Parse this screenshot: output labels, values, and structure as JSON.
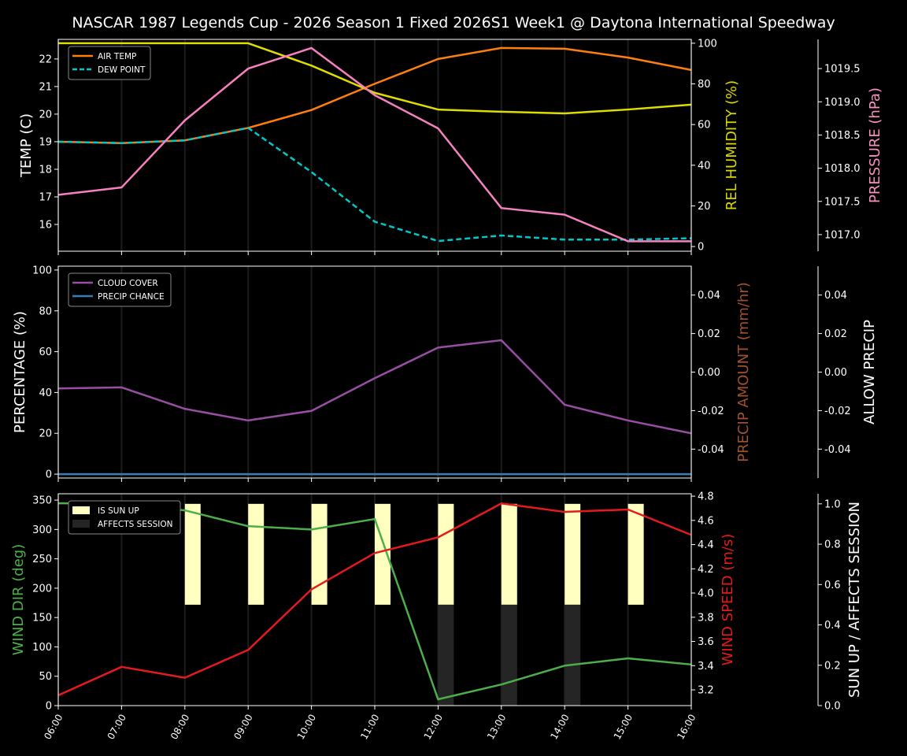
{
  "title": "NASCAR 1987 Legends Cup  - 2026 Season 1 Fixed 2026S1 Week1 @ Daytona International Speedway",
  "chart_data": [
    {
      "type": "line",
      "x": [
        "06:00",
        "07:00",
        "08:00",
        "09:00",
        "10:00",
        "11:00",
        "12:00",
        "13:00",
        "14:00",
        "15:00",
        "16:00"
      ],
      "axes": {
        "left": {
          "label": "TEMP (C)",
          "range": [
            15.03,
            22.71
          ],
          "ticks": [
            16,
            17,
            18,
            19,
            20,
            21,
            22
          ],
          "color": "#ffffff"
        },
        "right": {
          "label": "REL HUMIDITY (%)",
          "range": [
            -2.3,
            101.9
          ],
          "ticks": [
            0,
            20,
            40,
            60,
            80,
            100
          ],
          "color": "#d8d800"
        },
        "right2": {
          "label": "PRESSURE (hPa)",
          "range": [
            1016.75,
            1019.94
          ],
          "ticks": [
            1017.0,
            1017.5,
            1018.0,
            1018.5,
            1019.0,
            1019.5
          ],
          "color": "#f78fbf"
        }
      },
      "series": [
        {
          "name": "AIR TEMP",
          "axis": "left",
          "color": "#ff7f0e",
          "dash": false,
          "legend": true,
          "values": [
            19.0,
            18.95,
            19.05,
            19.5,
            20.15,
            21.1,
            22.0,
            22.4,
            22.37,
            22.05,
            21.6
          ]
        },
        {
          "name": "DEW POINT",
          "axis": "left",
          "color": "#00c8c8",
          "dash": true,
          "legend": true,
          "values": [
            19.0,
            18.95,
            19.05,
            19.5,
            17.9,
            16.1,
            15.4,
            15.6,
            15.45,
            15.45,
            15.5
          ]
        },
        {
          "axis": "right",
          "color": "#dddd00",
          "dash": false,
          "legend": false,
          "values": [
            100,
            100,
            100,
            100,
            89,
            75.6,
            67.4,
            66.3,
            65.5,
            67.4,
            69.8
          ]
        },
        {
          "axis": "right2",
          "color": "#f781bf",
          "dash": false,
          "legend": false,
          "values": [
            1017.6,
            1017.71,
            1018.72,
            1019.5,
            1019.81,
            1019.1,
            1018.6,
            1017.4,
            1017.3,
            1016.9,
            1016.9
          ]
        }
      ],
      "legend": "upper-left",
      "grid": "vertical"
    },
    {
      "type": "line",
      "x": [
        "06:00",
        "07:00",
        "08:00",
        "09:00",
        "10:00",
        "11:00",
        "12:00",
        "13:00",
        "14:00",
        "15:00",
        "16:00"
      ],
      "axes": {
        "left": {
          "label": "PERCENTAGE (%)",
          "range": [
            -1.9,
            101.9
          ],
          "ticks": [
            0,
            20,
            40,
            60,
            80,
            100
          ],
          "color": "#ffffff"
        },
        "right": {
          "label": "PRECIP AMOUNT (mm/hr)",
          "range": [
            -0.055,
            0.055
          ],
          "ticks": [
            -0.04,
            -0.02,
            0.0,
            0.02,
            0.04
          ],
          "color": "#a0522d"
        },
        "right2": {
          "label": "ALLOW PRECIP",
          "range": [
            -0.055,
            0.055
          ],
          "ticks": [
            -0.04,
            -0.02,
            0.0,
            0.02,
            0.04
          ],
          "color": "#ffffff"
        }
      },
      "series": [
        {
          "name": "CLOUD COVER",
          "axis": "left",
          "color": "#984ea3",
          "dash": false,
          "legend": true,
          "values": [
            42,
            42.5,
            32,
            26.3,
            31,
            47,
            62,
            65.6,
            34,
            26.3,
            20
          ]
        },
        {
          "name": "PRECIP CHANCE",
          "axis": "left",
          "color": "#377eb8",
          "dash": false,
          "legend": true,
          "values": [
            0,
            0,
            0,
            0,
            0,
            0,
            0,
            0,
            0,
            0,
            0
          ]
        }
      ],
      "legend": "upper-left",
      "grid": "vertical"
    },
    {
      "type": "line+bar",
      "x": [
        "06:00",
        "07:00",
        "08:00",
        "09:00",
        "10:00",
        "11:00",
        "12:00",
        "13:00",
        "14:00",
        "15:00",
        "16:00"
      ],
      "axes": {
        "left": {
          "label": "WIND DIR (deg)",
          "range": [
            0,
            360.8
          ],
          "ticks": [
            0,
            50,
            100,
            150,
            200,
            250,
            300,
            350
          ],
          "color": "#4daf4a"
        },
        "right": {
          "label": "WIND SPEED (m/s)",
          "range": [
            3.07,
            4.82
          ],
          "ticks": [
            3.2,
            3.4,
            3.6,
            3.8,
            4.0,
            4.2,
            4.4,
            4.6,
            4.8
          ],
          "color": "#e41a1c"
        },
        "right2": {
          "label": "SUN UP / AFFECTS SESSION",
          "range": [
            0,
            1.05
          ],
          "ticks": [
            0.0,
            0.2,
            0.4,
            0.6,
            0.8,
            1.0
          ],
          "color": "#ffffff"
        }
      },
      "bars": [
        {
          "name": "IS SUN UP",
          "color": "#ffffc0",
          "base": 0.5,
          "height": 0.5,
          "values": [
            0,
            0,
            1,
            1,
            1,
            1,
            1,
            1,
            1,
            1,
            0
          ]
        },
        {
          "name": "AFFECTS SESSION",
          "color": "#252525",
          "base": 0,
          "height": 0.5,
          "values": [
            0,
            0,
            0,
            0,
            0,
            0,
            1,
            1,
            1,
            0,
            0
          ]
        }
      ],
      "series": [
        {
          "axis": "left",
          "color": "#4daf4a",
          "dash": false,
          "legend": false,
          "values": [
            344.6,
            344.6,
            332.5,
            305.6,
            300,
            317.8,
            10.7,
            36,
            68,
            80.5,
            70
          ]
        },
        {
          "axis": "right",
          "color": "#e41a1c",
          "dash": false,
          "legend": false,
          "values": [
            3.155,
            3.39,
            3.3,
            3.53,
            4.03,
            4.33,
            4.46,
            4.74,
            4.67,
            4.69,
            4.48
          ]
        }
      ],
      "legend": "upper-left",
      "grid": "vertical"
    }
  ]
}
